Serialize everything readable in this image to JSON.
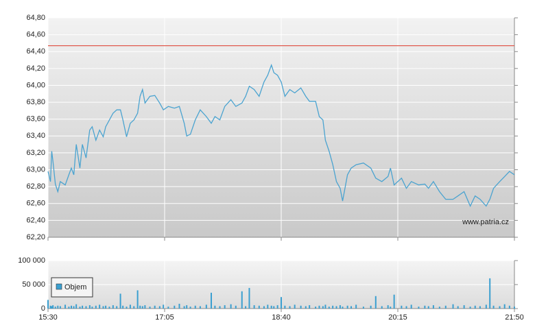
{
  "chart_data": [
    {
      "type": "line",
      "color": "#4aa3d0",
      "reference_line": {
        "value": 64.47,
        "color": "#e0584c"
      },
      "annotation": "www.patria.cz",
      "xlim": [
        "15:30",
        "21:50"
      ],
      "ylim": [
        62.2,
        64.8
      ],
      "yticks": [
        {
          "value": 62.2,
          "label": "62,20"
        },
        {
          "value": 62.4,
          "label": "62,40"
        },
        {
          "value": 62.6,
          "label": "62,60"
        },
        {
          "value": 62.8,
          "label": "62,80"
        },
        {
          "value": 63.0,
          "label": "63,00"
        },
        {
          "value": 63.2,
          "label": "63,20"
        },
        {
          "value": 63.4,
          "label": "63,40"
        },
        {
          "value": 63.6,
          "label": "63,60"
        },
        {
          "value": 63.8,
          "label": "63,80"
        },
        {
          "value": 64.0,
          "label": "64,00"
        },
        {
          "value": 64.2,
          "label": "64,20"
        },
        {
          "value": 64.4,
          "label": "64,40"
        },
        {
          "value": 64.6,
          "label": "64,60"
        },
        {
          "value": 64.8,
          "label": "64,80"
        }
      ],
      "grid": true,
      "x": [
        "15:30",
        "15:32",
        "15:33",
        "15:34",
        "15:36",
        "15:38",
        "15:40",
        "15:44",
        "15:47",
        "15:49",
        "15:51",
        "15:53",
        "15:56",
        "15:58",
        "16:01",
        "16:04",
        "16:06",
        "16:09",
        "16:12",
        "16:15",
        "16:17",
        "16:20",
        "16:23",
        "16:26",
        "16:29",
        "16:31",
        "16:34",
        "16:37",
        "16:40",
        "16:43",
        "16:45",
        "16:47",
        "16:49",
        "16:53",
        "16:57",
        "17:01",
        "17:04",
        "17:08",
        "17:13",
        "17:17",
        "17:21",
        "17:23",
        "17:26",
        "17:30",
        "17:34",
        "17:39",
        "17:43",
        "17:46",
        "17:50",
        "17:54",
        "17:59",
        "18:03",
        "18:08",
        "18:11",
        "18:14",
        "18:18",
        "18:22",
        "18:26",
        "18:29",
        "18:32",
        "18:34",
        "18:37",
        "18:40",
        "18:43",
        "18:47",
        "18:51",
        "18:56",
        "19:00",
        "19:03",
        "19:08",
        "19:11",
        "19:14",
        "19:16",
        "19:19",
        "19:22",
        "19:25",
        "19:28",
        "19:30",
        "19:34",
        "19:37",
        "19:41",
        "19:47",
        "19:53",
        "19:57",
        "20:02",
        "20:07",
        "20:09",
        "20:12",
        "20:18",
        "20:22",
        "20:26",
        "20:32",
        "20:37",
        "20:40",
        "20:44",
        "20:49",
        "20:54",
        "21:00",
        "21:04",
        "21:09",
        "21:14",
        "21:18",
        "21:22",
        "21:27",
        "21:30",
        "21:33",
        "21:38",
        "21:42",
        "21:46",
        "21:50"
      ],
      "values": [
        62.98,
        62.86,
        63.22,
        63.1,
        62.83,
        62.74,
        62.86,
        62.82,
        62.94,
        63.02,
        62.94,
        63.3,
        63.02,
        63.3,
        63.14,
        63.47,
        63.51,
        63.35,
        63.47,
        63.39,
        63.51,
        63.59,
        63.67,
        63.71,
        63.71,
        63.59,
        63.39,
        63.55,
        63.59,
        63.67,
        63.87,
        63.95,
        63.79,
        63.87,
        63.88,
        63.79,
        63.71,
        63.75,
        63.73,
        63.75,
        63.55,
        63.4,
        63.42,
        63.59,
        63.71,
        63.63,
        63.55,
        63.63,
        63.59,
        63.75,
        63.83,
        63.75,
        63.79,
        63.87,
        63.99,
        63.95,
        63.87,
        64.04,
        64.12,
        64.24,
        64.15,
        64.12,
        64.04,
        63.87,
        63.95,
        63.91,
        63.97,
        63.87,
        63.81,
        63.81,
        63.63,
        63.59,
        63.35,
        63.22,
        63.06,
        62.86,
        62.78,
        62.63,
        62.94,
        63.02,
        63.06,
        63.08,
        63.02,
        62.9,
        62.86,
        62.92,
        63.02,
        62.82,
        62.9,
        62.78,
        62.86,
        62.82,
        62.83,
        62.78,
        62.86,
        62.74,
        62.65,
        62.65,
        62.69,
        62.74,
        62.57,
        62.69,
        62.65,
        62.57,
        62.65,
        62.78,
        62.86,
        62.92,
        62.98,
        62.94
      ]
    },
    {
      "type": "bar",
      "xlim": [
        "15:30",
        "21:50"
      ],
      "xticks": [
        "15:30",
        "17:05",
        "18:40",
        "20:15",
        "21:50"
      ],
      "ylim": [
        0,
        100000
      ],
      "yticks": [
        0,
        {
          "value": 50000,
          "label": "50 000"
        },
        {
          "value": 100000,
          "label": "100 000"
        }
      ],
      "grid": true,
      "x": [
        "15:30",
        "15:32",
        "15:33",
        "15:34",
        "15:36",
        "15:38",
        "15:40",
        "15:44",
        "15:47",
        "15:49",
        "15:51",
        "15:53",
        "15:56",
        "15:58",
        "16:01",
        "16:04",
        "16:06",
        "16:09",
        "16:12",
        "16:15",
        "16:17",
        "16:20",
        "16:23",
        "16:26",
        "16:29",
        "16:31",
        "16:34",
        "16:37",
        "16:40",
        "16:43",
        "16:45",
        "16:47",
        "16:49",
        "16:53",
        "16:57",
        "17:01",
        "17:04",
        "17:08",
        "17:13",
        "17:17",
        "17:21",
        "17:23",
        "17:26",
        "17:30",
        "17:34",
        "17:39",
        "17:43",
        "17:46",
        "17:50",
        "17:54",
        "17:59",
        "18:03",
        "18:08",
        "18:11",
        "18:14",
        "18:18",
        "18:22",
        "18:26",
        "18:29",
        "18:32",
        "18:34",
        "18:37",
        "18:40",
        "18:43",
        "18:47",
        "18:51",
        "18:56",
        "19:00",
        "19:03",
        "19:08",
        "19:11",
        "19:14",
        "19:16",
        "19:19",
        "19:22",
        "19:25",
        "19:28",
        "19:30",
        "19:34",
        "19:37",
        "19:41",
        "19:47",
        "19:53",
        "19:57",
        "20:02",
        "20:07",
        "20:09",
        "20:12",
        "20:18",
        "20:22",
        "20:26",
        "20:32",
        "20:37",
        "20:40",
        "20:44",
        "20:49",
        "20:54",
        "21:00",
        "21:04",
        "21:09",
        "21:14",
        "21:18",
        "21:22",
        "21:27",
        "21:30",
        "21:33",
        "21:38",
        "21:42",
        "21:46",
        "21:50"
      ],
      "series": [
        {
          "name": "Objem",
          "color": "#3a9fd0",
          "values": [
            18000,
            6000,
            5000,
            7000,
            4000,
            6000,
            5000,
            8000,
            4000,
            6000,
            5000,
            9000,
            4000,
            6000,
            5000,
            7000,
            4000,
            6000,
            8000,
            5000,
            6000,
            4000,
            7000,
            5000,
            31000,
            6000,
            4000,
            8000,
            5000,
            38000,
            6000,
            5000,
            7000,
            4000,
            6000,
            5000,
            8000,
            4000,
            6000,
            10000,
            5000,
            7000,
            4000,
            6000,
            5000,
            8000,
            33000,
            6000,
            5000,
            7000,
            9000,
            6000,
            36000,
            5000,
            43000,
            7000,
            6000,
            5000,
            8000,
            6000,
            5000,
            7000,
            24000,
            6000,
            5000,
            8000,
            6000,
            5000,
            7000,
            4000,
            6000,
            5000,
            8000,
            4000,
            6000,
            5000,
            7000,
            4000,
            6000,
            5000,
            8000,
            4000,
            6000,
            26000,
            5000,
            7000,
            4000,
            29000,
            6000,
            5000,
            8000,
            4000,
            6000,
            5000,
            7000,
            4000,
            6000,
            9000,
            5000,
            7000,
            4000,
            6000,
            5000,
            8000,
            63000,
            6000,
            5000,
            9000,
            6000,
            4000
          ]
        }
      ],
      "legend": "lower left"
    }
  ]
}
